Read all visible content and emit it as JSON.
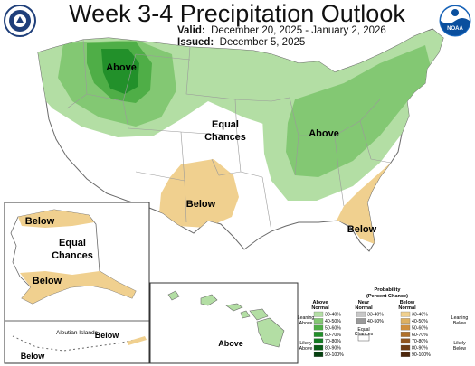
{
  "header": {
    "title": "Week 3-4 Precipitation Outlook",
    "valid_label": "Valid:",
    "valid_value": "December 20, 2025 - January 2, 2026",
    "issued_label": "Issued:",
    "issued_value": "December 5, 2025"
  },
  "logos": {
    "left": "doc-seal-icon",
    "right": "noaa-logo-icon",
    "right_text": "NOAA"
  },
  "map_labels": {
    "above_northwest": "Above",
    "equal_chances_line1": "Equal",
    "equal_chances_line2": "Chances",
    "above_midwest": "Above",
    "below_southwest": "Below",
    "below_southeast": "Below",
    "alaska_below_north": "Below",
    "alaska_equal_line1": "Equal",
    "alaska_equal_line2": "Chances",
    "alaska_below_south": "Below",
    "aleutian_label": "Aleutian Islands",
    "aleutian_below_right": "Below",
    "aleutian_below_left": "Below",
    "hawaii_above": "Above"
  },
  "legend": {
    "title_line1": "Probability",
    "title_line2": "(Percent Chance)",
    "above_header_1": "Above",
    "above_header_2": "Normal",
    "near_header_1": "Near",
    "near_header_2": "Normal",
    "below_header_1": "Below",
    "below_header_2": "Normal",
    "above_ranges": [
      "33-40%",
      "40-50%",
      "50-60%",
      "60-70%",
      "70-80%",
      "80-90%",
      "90-100%"
    ],
    "near_ranges": [
      "33-40%",
      "40-50%"
    ],
    "below_ranges": [
      "33-40%",
      "40-50%",
      "50-60%",
      "60-70%",
      "70-80%",
      "80-90%",
      "90-100%"
    ],
    "above_colors": [
      "#b3dea4",
      "#83c873",
      "#4fae47",
      "#22902a",
      "#137a22",
      "#0a5c17",
      "#05400f"
    ],
    "near_colors": [
      "#c8c8c8",
      "#9a9a9a"
    ],
    "below_colors": [
      "#f0d08f",
      "#ddb062",
      "#cf8f3e",
      "#b0702a",
      "#8f5520",
      "#6e3c15",
      "#4c260b"
    ],
    "equal_chances_1": "Equal",
    "equal_chances_2": "Chances",
    "leaning_above_1": "Leaning",
    "leaning_above_2": "Above",
    "likely_above_1": "Likely",
    "likely_above_2": "Above",
    "leaning_below_1": "Leaning",
    "leaning_below_2": "Below",
    "likely_below_1": "Likely",
    "likely_below_2": "Below"
  },
  "colors": {
    "above_33_40": "#b3dea4",
    "above_40_50": "#83c873",
    "above_50_60": "#4fae47",
    "above_60_70": "#22902a",
    "below_33_40": "#f0d08f"
  }
}
